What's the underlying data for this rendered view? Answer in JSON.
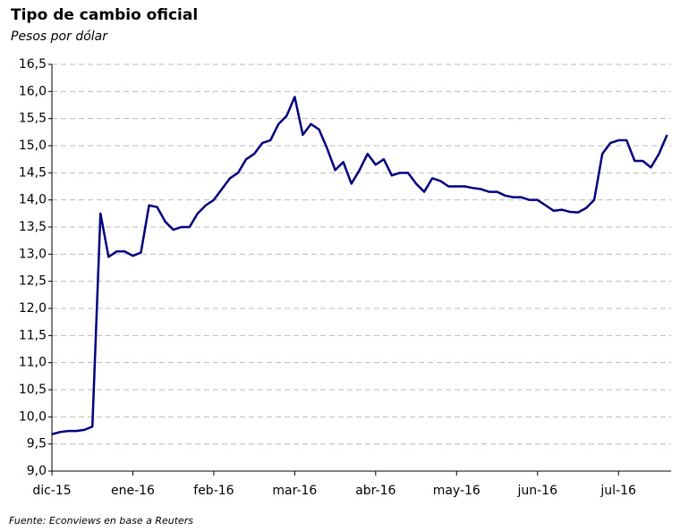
{
  "chart_data": {
    "type": "line",
    "title": "Tipo de cambio oficial",
    "subtitle": "Pesos por dólar",
    "source": "Fuente: Econviews en base a Reuters",
    "series": [
      {
        "color": "#000080",
        "values": [
          9.68,
          9.72,
          9.74,
          9.74,
          9.76,
          9.82,
          13.75,
          12.95,
          13.05,
          13.05,
          12.97,
          13.03,
          13.9,
          13.87,
          13.6,
          13.45,
          13.5,
          13.5,
          13.75,
          13.9,
          14.0,
          14.2,
          14.4,
          14.5,
          14.75,
          14.85,
          15.05,
          15.1,
          15.4,
          15.55,
          15.9,
          15.2,
          15.4,
          15.3,
          14.95,
          14.55,
          14.7,
          14.3,
          14.55,
          14.85,
          14.65,
          14.75,
          14.45,
          14.5,
          14.5,
          14.3,
          14.15,
          14.4,
          14.35,
          14.25,
          14.25,
          14.25,
          14.22,
          14.2,
          14.15,
          14.15,
          14.08,
          14.05,
          14.05,
          14.0,
          14.0,
          13.9,
          13.8,
          13.82,
          13.78,
          13.77,
          13.85,
          14.0,
          14.85,
          15.05,
          15.1,
          15.1,
          14.72,
          14.72,
          14.6,
          14.85,
          15.2
        ]
      }
    ],
    "xlim": [
      0,
      76.5
    ],
    "xticks": [
      {
        "value": 0,
        "label": "dic-15"
      },
      {
        "value": 10,
        "label": "ene-16"
      },
      {
        "value": 20,
        "label": "feb-16"
      },
      {
        "value": 30,
        "label": "mar-16"
      },
      {
        "value": 40,
        "label": "abr-16"
      },
      {
        "value": 50,
        "label": "may-16"
      },
      {
        "value": 60,
        "label": "jun-16"
      },
      {
        "value": 70,
        "label": "jul-16"
      }
    ],
    "ylim": [
      9,
      16.5
    ],
    "yticks": [
      {
        "value": 9,
        "label": "9,0"
      },
      {
        "value": 9.5,
        "label": "9,5"
      },
      {
        "value": 10,
        "label": "10,0"
      },
      {
        "value": 10.5,
        "label": "10,5"
      },
      {
        "value": 11,
        "label": "11,0"
      },
      {
        "value": 11.5,
        "label": "11,5"
      },
      {
        "value": 12,
        "label": "12,0"
      },
      {
        "value": 12.5,
        "label": "12,5"
      },
      {
        "value": 13,
        "label": "13,0"
      },
      {
        "value": 13.5,
        "label": "13,5"
      },
      {
        "value": 14,
        "label": "14,0"
      },
      {
        "value": 14.5,
        "label": "14,5"
      },
      {
        "value": 15,
        "label": "15,0"
      },
      {
        "value": 15.5,
        "label": "15,5"
      },
      {
        "value": 16,
        "label": "16,0"
      },
      {
        "value": 16.5,
        "label": "16,5"
      }
    ],
    "grid": true
  }
}
